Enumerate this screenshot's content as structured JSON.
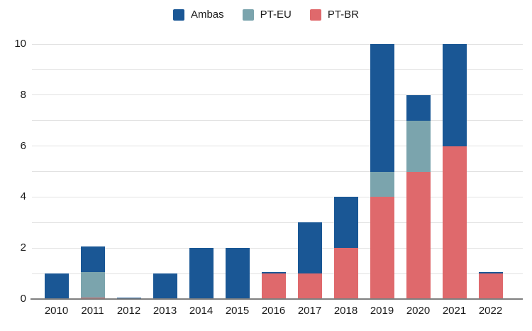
{
  "chart_data": {
    "type": "bar",
    "stacked": true,
    "title": "",
    "categories": [
      "2010",
      "2011",
      "2012",
      "2013",
      "2014",
      "2015",
      "2016",
      "2017",
      "2018",
      "2019",
      "2020",
      "2021",
      "2022"
    ],
    "series": [
      {
        "name": "Ambas",
        "color": "#1A5795",
        "values": [
          1,
          1,
          0.05,
          1,
          2,
          2,
          0.05,
          2,
          2,
          5,
          1,
          4,
          0.05
        ]
      },
      {
        "name": "PT-EU",
        "color": "#7BA4AD",
        "values": [
          0,
          1,
          0,
          0,
          0,
          0,
          0,
          0,
          0,
          1,
          2,
          0,
          0
        ]
      },
      {
        "name": "PT-BR",
        "color": "#DF696C",
        "values": [
          0,
          0.05,
          0,
          0,
          0,
          0,
          1,
          1,
          2,
          4,
          5,
          6,
          1
        ]
      }
    ],
    "stack_order_bottom_to_top": [
      "PT-BR",
      "PT-EU",
      "Ambas"
    ],
    "totals_by_year": [
      1,
      2,
      0,
      1,
      2,
      2,
      1,
      3,
      4,
      10,
      8,
      10,
      1
    ],
    "y_axis": {
      "min": 0,
      "max": 10,
      "tick_interval": 2,
      "tick_labels": [
        "0",
        "2",
        "4",
        "6",
        "8",
        "10"
      ],
      "minor_gridline_interval": 1
    },
    "xlabel": "",
    "ylabel": "",
    "legend": {
      "position": "top",
      "entries": [
        "Ambas",
        "PT-EU",
        "PT-BR"
      ]
    },
    "grid": true
  },
  "colors": {
    "ambas": "#1A5795",
    "pt_eu": "#7BA4AD",
    "pt_br": "#DF696C",
    "gridline": "#E2E2E2",
    "axis_line": "#7F7F7F",
    "text": "#1A1A1A",
    "background": "#FFFFFF"
  }
}
